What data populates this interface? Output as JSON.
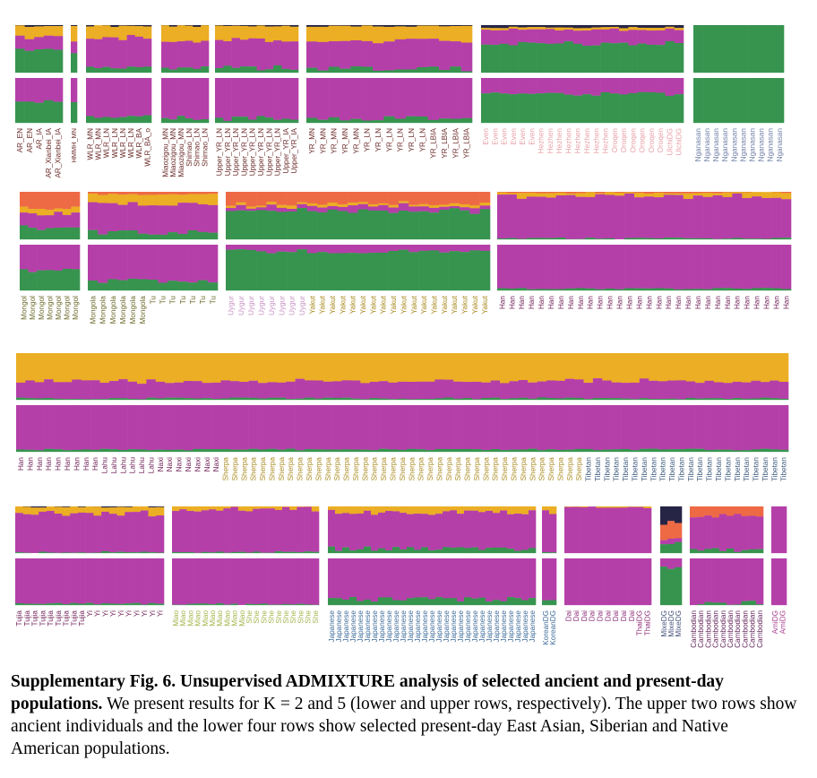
{
  "caption": {
    "title": "Supplementary Fig. 6. Unsupervised ADMIXTURE analysis of selected ancient and present-day populations.",
    "body": " We present results for K = 2 and 5 (lower and upper rows, respectively). The upper two rows show ancient individuals and the lower four rows show selected present-day East Asian, Siberian and Native American populations."
  },
  "colors": {
    "gold": "#EBAE24",
    "magenta": "#B53FA9",
    "green": "#37944F",
    "orange": "#EE6A45",
    "navy": "#272546"
  },
  "chart_data": {
    "type": "stacked-bar",
    "method": "Unsupervised ADMIXTURE",
    "k_values": [
      5,
      2
    ],
    "component_colors_k5": [
      "navy",
      "orange",
      "gold",
      "magenta",
      "green"
    ],
    "component_colors_k2": [
      "magenta",
      "green"
    ],
    "rows": [
      {
        "label": "ancient-row-1",
        "panels": [
          {
            "individuals": [
              "AR_EN",
              "AR_EN",
              "AR_IA",
              "AR_Xianbei_IA",
              "AR_Xianbei_IA"
            ],
            "k5": {
              "navy": 0.02,
              "gold": 0.2,
              "magenta": 0.28,
              "green": 0.5
            },
            "k2": {
              "magenta": 0.52,
              "green": 0.48
            }
          },
          {
            "individuals": [
              "HMMH_MN"
            ],
            "k5": {
              "navy": 0.02,
              "gold": 0.3,
              "magenta": 0.28,
              "green": 0.4
            },
            "k2": {
              "magenta": 0.55,
              "green": 0.45
            }
          },
          {
            "individuals": [
              "WLR_MN",
              "WLR_MN",
              "WLR_LN",
              "WLR_LN",
              "WLR_LN",
              "WLR_LN",
              "WLR_BA",
              "WLR_BA_o"
            ],
            "k5": {
              "navy": 0.02,
              "gold": 0.25,
              "magenta": 0.63,
              "green": 0.1
            },
            "k2": {
              "magenta": 0.85,
              "green": 0.15
            }
          },
          {
            "individuals": [
              "Miaozigou_MN",
              "Miaozigou_MN",
              "Miaozigou_MN",
              "Shimao_LN",
              "Shimao_LN",
              "Shimao_LN"
            ],
            "k5": {
              "navy": 0.02,
              "gold": 0.35,
              "magenta": 0.55,
              "green": 0.08
            },
            "k2": {
              "magenta": 0.9,
              "green": 0.1
            }
          },
          {
            "individuals": [
              "Upper_YR_LN",
              "Upper_YR_LN",
              "Upper_YR_LN",
              "Upper_YR_LN",
              "Upper_YR_LN",
              "Upper_YR_LN",
              "Upper_YR_LN",
              "Upper_YR_LN",
              "Upper_YR_IA",
              "Upper_YR_IA"
            ],
            "k5": {
              "navy": 0.02,
              "gold": 0.3,
              "magenta": 0.58,
              "green": 0.1
            },
            "k2": {
              "magenta": 0.9,
              "green": 0.1
            }
          },
          {
            "individuals": [
              "YR_MN",
              "YR_MN",
              "YR_MN",
              "YR_MN",
              "YR_MN",
              "YR_LN",
              "YR_LN",
              "YR_LN",
              "YR_LN",
              "YR_LN",
              "YR_LN",
              "YR_LBIA",
              "YR_LBIA",
              "YR_LBIA",
              "YR_LBIA"
            ],
            "k5": {
              "navy": 0.02,
              "gold": 0.3,
              "magenta": 0.6,
              "green": 0.08
            },
            "k2": {
              "magenta": 0.9,
              "green": 0.1
            }
          },
          {
            "individuals": [
              "Even",
              "Even",
              "Even",
              "Even",
              "Even",
              "Even",
              "Hezhen",
              "Hezhen",
              "Hezhen",
              "Hezhen",
              "Hezhen",
              "Hezhen",
              "Hezhen",
              "Hezhen",
              "Oroqen",
              "Oroqen",
              "Oroqen",
              "Oroqen",
              "Oroqen",
              "Oroqen",
              "UlchiDG",
              "UlchiDG"
            ],
            "k5": {
              "navy": 0.05,
              "gold": 0.05,
              "magenta": 0.3,
              "green": 0.6
            },
            "k2": {
              "magenta": 0.35,
              "green": 0.65
            }
          },
          {
            "individuals": [
              "Nganasan",
              "Nganasan",
              "Nganasan",
              "Nganasan",
              "Nganasan",
              "Nganasan",
              "Nganasan",
              "Nganasan",
              "Nganasan",
              "Nganasan"
            ],
            "k5": {
              "green": 1.0
            },
            "k2": {
              "green": 1.0
            }
          }
        ]
      },
      {
        "label": "ancient-row-2",
        "panels": [
          {
            "individuals": [
              "Mongol",
              "Mongol",
              "Mongol",
              "Mongol",
              "Mongol",
              "Mongol",
              "Mongol"
            ],
            "k5": {
              "orange": 0.35,
              "gold": 0.1,
              "magenta": 0.3,
              "green": 0.25
            },
            "k2": {
              "magenta": 0.55,
              "green": 0.45
            }
          },
          {
            "individuals": [
              "Mongola",
              "Mongola",
              "Mongola",
              "Mongola",
              "Mongola",
              "Mongola",
              "Tu",
              "Tu",
              "Tu",
              "Tu",
              "Tu",
              "Tu",
              "Tu"
            ],
            "k5": {
              "orange": 0.05,
              "gold": 0.2,
              "magenta": 0.6,
              "green": 0.15
            },
            "k2": {
              "magenta": 0.8,
              "green": 0.2
            }
          },
          {
            "individuals": [
              "Uygur",
              "Uygur",
              "Uygur",
              "Uygur",
              "Uygur",
              "Uygur",
              "Uygur",
              "Uygur",
              "Yakut",
              "Yakut",
              "Yakut",
              "Yakut",
              "Yakut",
              "Yakut",
              "Yakut",
              "Yakut",
              "Yakut",
              "Yakut",
              "Yakut",
              "Yakut",
              "Yakut",
              "Yakut",
              "Yakut",
              "Yakut",
              "Yakut",
              "Yakut"
            ],
            "k5": {
              "orange": 0.25,
              "gold": 0.05,
              "magenta": 0.1,
              "green": 0.6
            },
            "k2": {
              "magenta": 0.15,
              "green": 0.85
            }
          },
          {
            "individuals": [
              "Han",
              "Han",
              "Han",
              "Han",
              "Han",
              "Han",
              "Han",
              "Han",
              "Han",
              "Han",
              "Han",
              "Han",
              "Han",
              "Han",
              "Han",
              "Han",
              "Han",
              "Han",
              "Han",
              "Han",
              "Han",
              "Han",
              "Han",
              "Han",
              "Han",
              "Han",
              "Han",
              "Han",
              "Han",
              "Han"
            ],
            "k5": {
              "orange": 0.02,
              "gold": 0.08,
              "magenta": 0.88,
              "green": 0.02
            },
            "k2": {
              "magenta": 0.96,
              "green": 0.04
            }
          }
        ]
      },
      {
        "label": "present-day-row-1",
        "panels": [
          {
            "individuals": [
              "Han",
              "Han",
              "Han",
              "Han",
              "Han",
              "Han",
              "Han",
              "Han",
              "Han",
              "Lahu",
              "Lahu",
              "Lahu",
              "Lahu",
              "Lahu",
              "Lahu",
              "Naxi",
              "Naxi",
              "Naxi",
              "Naxi",
              "Naxi",
              "Naxi",
              "Naxi",
              "Sherpa",
              "Sherpa",
              "Sherpa",
              "Sherpa",
              "Sherpa",
              "Sherpa",
              "Sherpa",
              "Sherpa",
              "Sherpa",
              "Sherpa",
              "Sherpa",
              "Sherpa",
              "Sherpa",
              "Sherpa",
              "Sherpa",
              "Sherpa",
              "Sherpa",
              "Sherpa",
              "Sherpa",
              "Sherpa",
              "Sherpa",
              "Sherpa",
              "Sherpa",
              "Sherpa",
              "Sherpa",
              "Sherpa",
              "Sherpa",
              "Sherpa",
              "Sherpa",
              "Sherpa",
              "Sherpa",
              "Sherpa",
              "Sherpa",
              "Sherpa",
              "Sherpa",
              "Sherpa",
              "Sherpa",
              "Sherpa",
              "Sherpa",
              "Tibetan",
              "Tibetan",
              "Tibetan",
              "Tibetan",
              "Tibetan",
              "Tibetan",
              "Tibetan",
              "Tibetan",
              "Tibetan",
              "Tibetan",
              "Tibetan",
              "Tibetan",
              "Tibetan",
              "Tibetan",
              "Tibetan",
              "Tibetan",
              "Tibetan",
              "Tibetan",
              "Tibetan",
              "Tibetan",
              "Tibetan",
              "Tibetan"
            ],
            "k5": {
              "gold": 0.6,
              "magenta": 0.37,
              "green": 0.03
            },
            "k2": {
              "magenta": 0.95,
              "green": 0.05
            }
          }
        ]
      },
      {
        "label": "present-day-row-2",
        "panels": [
          {
            "individuals": [
              "Tujia",
              "Tujia",
              "Tujia",
              "Tujia",
              "Tujia",
              "Tujia",
              "Tujia",
              "Tujia",
              "Tujia",
              "Yi",
              "Yi",
              "Yi",
              "Yi",
              "Yi",
              "Yi",
              "Yi",
              "Yi",
              "Yi",
              "Yi"
            ],
            "k5": {
              "navy": 0.01,
              "gold": 0.14,
              "magenta": 0.83,
              "green": 0.02
            },
            "k2": {
              "magenta": 0.97,
              "green": 0.03
            }
          },
          {
            "individuals": [
              "Miao",
              "Miao",
              "Miao",
              "Miao",
              "Miao",
              "Miao",
              "Miao",
              "Miao",
              "Miao",
              "Miao",
              "She",
              "She",
              "She",
              "She",
              "She",
              "She",
              "She",
              "She",
              "She",
              "She"
            ],
            "k5": {
              "gold": 0.06,
              "magenta": 0.92,
              "green": 0.02
            },
            "k2": {
              "magenta": 0.98,
              "green": 0.02
            }
          },
          {
            "individuals": [
              "Japanese",
              "Japanese",
              "Japanese",
              "Japanese",
              "Japanese",
              "Japanese",
              "Japanese",
              "Japanese",
              "Japanese",
              "Japanese",
              "Japanese",
              "Japanese",
              "Japanese",
              "Japanese",
              "Japanese",
              "Japanese",
              "Japanese",
              "Japanese",
              "Japanese",
              "Japanese",
              "Japanese",
              "Japanese",
              "Japanese",
              "Japanese",
              "Japanese",
              "Japanese",
              "Japanese",
              "Japanese",
              "Japanese"
            ],
            "k5": {
              "gold": 0.13,
              "magenta": 0.77,
              "green": 0.1
            },
            "k2": {
              "magenta": 0.88,
              "green": 0.12
            }
          },
          {
            "individuals": [
              "KoreanDG",
              "KoreanDG"
            ],
            "k5": {
              "gold": 0.12,
              "magenta": 0.82,
              "green": 0.06
            },
            "k2": {
              "magenta": 0.92,
              "green": 0.08
            }
          },
          {
            "individuals": [
              "Dai",
              "Dai",
              "Dai",
              "Dai",
              "Dai",
              "Dai",
              "Dai",
              "Dai",
              "Dai",
              "ThaiDG",
              "ThaiDG"
            ],
            "k5": {
              "gold": 0.02,
              "magenta": 0.98
            },
            "k2": {
              "magenta": 1.0
            }
          },
          {
            "individuals": [
              "MixeDG",
              "MixeDG",
              "MixeDG"
            ],
            "k5": {
              "navy": 0.35,
              "orange": 0.35,
              "magenta": 0.1,
              "green": 0.2
            },
            "k2": {
              "magenta": 0.2,
              "green": 0.8
            }
          },
          {
            "individuals": [
              "Cambodian",
              "Cambodian",
              "Cambodian",
              "Cambodian",
              "Cambodian",
              "Cambodian",
              "Cambodian",
              "Cambodian",
              "Cambodian",
              "Cambodian"
            ],
            "k5": {
              "orange": 0.2,
              "magenta": 0.74,
              "green": 0.06
            },
            "k2": {
              "magenta": 0.94,
              "green": 0.06
            }
          },
          {
            "individuals": [
              "AmiDG",
              "AmiDG"
            ],
            "k5": {
              "magenta": 1.0
            },
            "k2": {
              "magenta": 1.0
            }
          }
        ]
      }
    ]
  }
}
